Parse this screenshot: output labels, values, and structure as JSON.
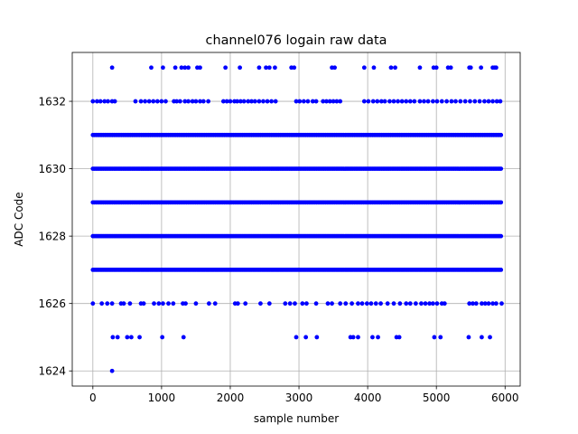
{
  "chart_data": {
    "type": "scatter",
    "title": "channel076 logain raw data",
    "xlabel": "sample number",
    "ylabel": "ADC Code",
    "xlim": [
      -300,
      6220
    ],
    "ylim": [
      1623.55,
      1633.45
    ],
    "xticks": [
      0,
      1000,
      2000,
      3000,
      4000,
      5000,
      6000
    ],
    "yticks": [
      1624,
      1626,
      1628,
      1630,
      1632
    ],
    "grid": true,
    "marker_color": "#0000ff",
    "dense_rows": [
      {
        "y": 1627,
        "x_range": [
          0,
          5950
        ]
      },
      {
        "y": 1628,
        "x_range": [
          0,
          5950
        ]
      },
      {
        "y": 1629,
        "x_range": [
          0,
          5950
        ]
      },
      {
        "y": 1630,
        "x_range": [
          0,
          5950
        ]
      },
      {
        "y": 1631,
        "x_range": [
          0,
          5950
        ]
      }
    ],
    "series": [
      {
        "y": 1633,
        "x": [
          280,
          850,
          1020,
          1200,
          1290,
          1340,
          1390,
          1520,
          1560,
          1930,
          2140,
          2420,
          2520,
          2570,
          2650,
          2890,
          2930,
          3480,
          3520,
          3950,
          4090,
          4340,
          4400,
          4760,
          4960,
          5000,
          5170,
          5210,
          5480,
          5500,
          5650,
          5820,
          5850,
          5870
        ]
      },
      {
        "y": 1632,
        "x": [
          0,
          60,
          110,
          170,
          220,
          280,
          320,
          620,
          700,
          760,
          820,
          880,
          940,
          1000,
          1060,
          1180,
          1220,
          1270,
          1340,
          1390,
          1450,
          1500,
          1560,
          1610,
          1680,
          1900,
          1950,
          2000,
          2060,
          2100,
          2150,
          2200,
          2260,
          2310,
          2360,
          2420,
          2480,
          2540,
          2600,
          2660,
          2960,
          3010,
          3070,
          3130,
          3200,
          3250,
          3350,
          3400,
          3450,
          3500,
          3550,
          3600,
          3950,
          4010,
          4080,
          4140,
          4200,
          4250,
          4320,
          4380,
          4440,
          4500,
          4560,
          4620,
          4680,
          4760,
          4820,
          4880,
          4950,
          5010,
          5080,
          5150,
          5220,
          5280,
          5350,
          5420,
          5490,
          5560,
          5630,
          5700,
          5760,
          5820,
          5880,
          5930
        ]
      },
      {
        "y": 1626,
        "x": [
          0,
          130,
          210,
          280,
          410,
          450,
          540,
          700,
          740,
          890,
          960,
          1020,
          1100,
          1170,
          1310,
          1350,
          1500,
          1690,
          1780,
          2070,
          2110,
          2220,
          2440,
          2570,
          2800,
          2870,
          2940,
          3050,
          3110,
          3250,
          3420,
          3480,
          3600,
          3680,
          3770,
          3860,
          3920,
          3990,
          4050,
          4120,
          4190,
          4290,
          4380,
          4470,
          4560,
          4620,
          4700,
          4780,
          4840,
          4900,
          4950,
          5010,
          5080,
          5120,
          5480,
          5530,
          5580,
          5660,
          5710,
          5760,
          5820,
          5870,
          5950
        ]
      },
      {
        "y": 1625,
        "x": [
          290,
          360,
          500,
          560,
          680,
          1010,
          1320,
          2960,
          3100,
          3260,
          3750,
          3790,
          3860,
          4070,
          4150,
          4420,
          4460,
          4970,
          5060,
          5470,
          5660,
          5780
        ]
      },
      {
        "y": 1624,
        "x": [
          280
        ]
      }
    ]
  }
}
